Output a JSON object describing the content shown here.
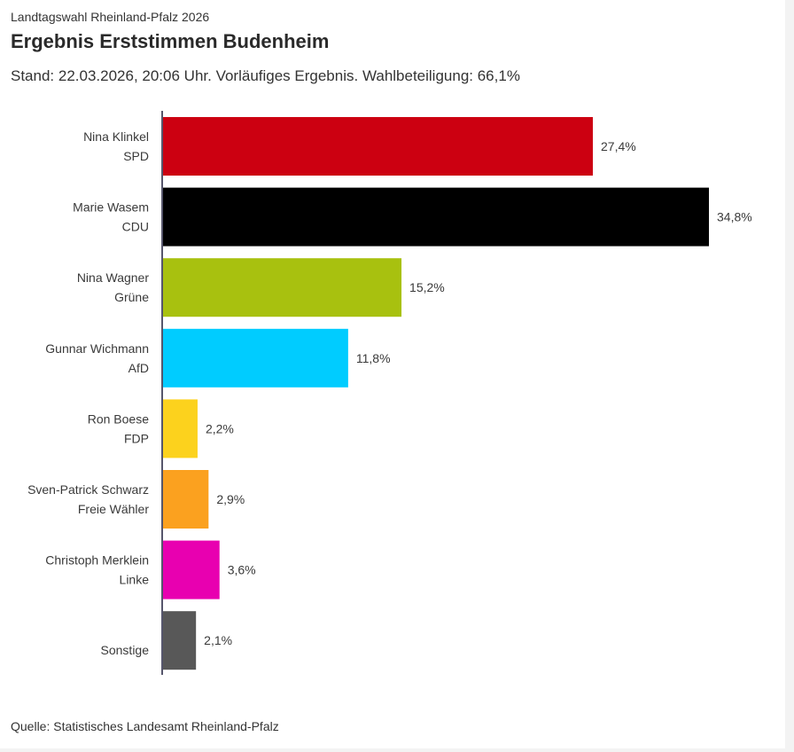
{
  "header": {
    "kicker": "Landtagswahl Rheinland-Pfalz 2026",
    "title": "Ergebnis Erststimmen Budenheim",
    "subtitle": "Stand: 22.03.2026, 20:06 Uhr. Vorläufiges Ergebnis. Wahlbeteiligung: 66,1%"
  },
  "footer": {
    "source": "Quelle: Statistisches Landesamt Rheinland-Pfalz"
  },
  "chart_data": {
    "type": "bar",
    "orientation": "horizontal",
    "title": "Ergebnis Erststimmen Budenheim",
    "xlabel": "",
    "ylabel": "",
    "xlim": [
      0,
      35
    ],
    "grid": false,
    "legend": "none",
    "unit": "%",
    "categories": [
      [
        "Nina Klinkel",
        "SPD"
      ],
      [
        "Marie Wasem",
        "CDU"
      ],
      [
        "Nina Wagner",
        "Grüne"
      ],
      [
        "Gunnar Wichmann",
        "AfD"
      ],
      [
        "Ron Boese",
        "FDP"
      ],
      [
        "Sven-Patrick Schwarz",
        "Freie Wähler"
      ],
      [
        "Christoph Merklein",
        "Linke"
      ],
      [
        "Sonstige"
      ]
    ],
    "values": [
      27.4,
      34.8,
      15.2,
      11.8,
      2.2,
      2.9,
      3.6,
      2.1
    ],
    "value_labels": [
      "27,4%",
      "34,8%",
      "15,2%",
      "11,8%",
      "2,2%",
      "2,9%",
      "3,6%",
      "2,1%"
    ],
    "colors": [
      "#cc0011",
      "#000000",
      "#a8c10f",
      "#00ccff",
      "#fcd21d",
      "#fba11f",
      "#e800b0",
      "#585858"
    ]
  }
}
